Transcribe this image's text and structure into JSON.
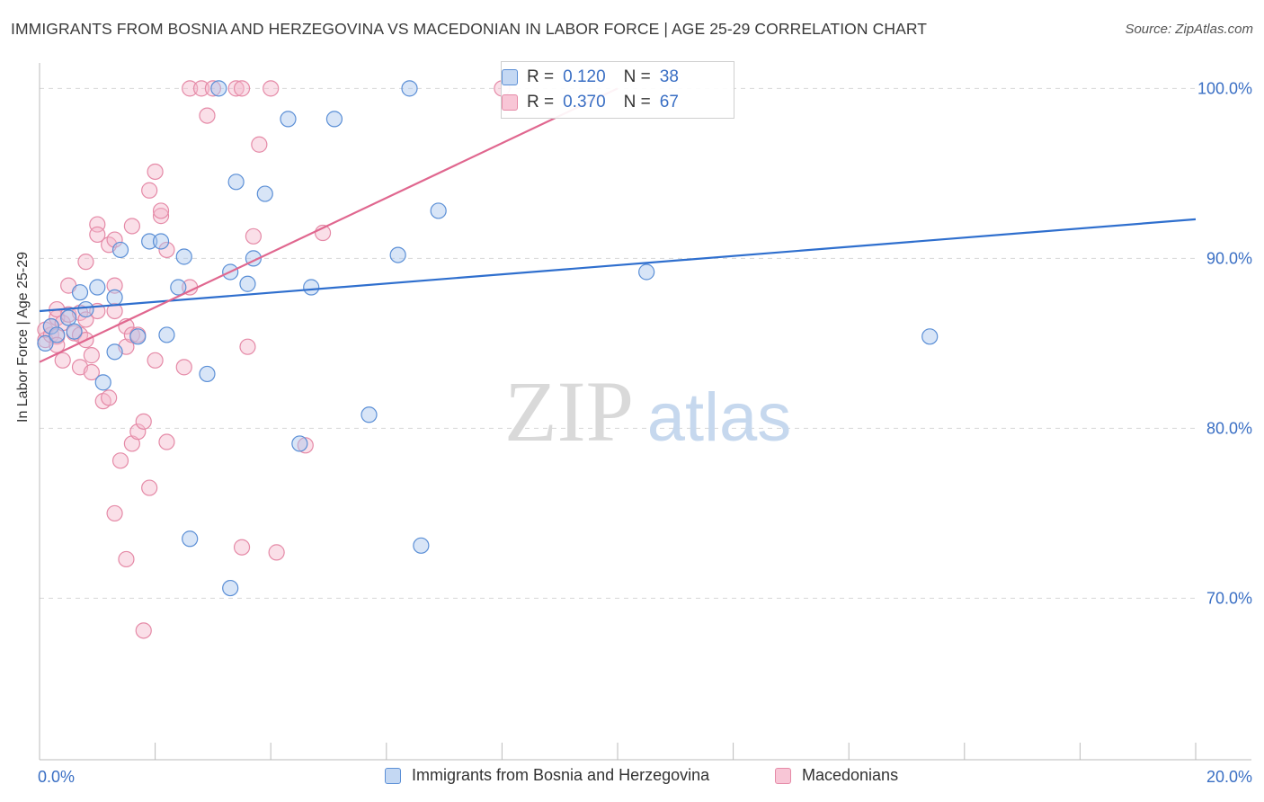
{
  "title": "IMMIGRANTS FROM BOSNIA AND HERZEGOVINA VS MACEDONIAN IN LABOR FORCE | AGE 25-29 CORRELATION CHART",
  "source": "Source: ZipAtlas.com",
  "watermark": {
    "zip": "ZIP",
    "atlas": "atlas"
  },
  "legend": {
    "r_label": "R =",
    "n_label": "N =",
    "rows": [
      {
        "r": "0.120",
        "n": "38"
      },
      {
        "r": "0.370",
        "n": "67"
      }
    ]
  },
  "colors": {
    "blue_fill": "#a9c6ee",
    "blue_stroke": "#5b8fd6",
    "blue_line": "#2f6fce",
    "pink_fill": "#f5b8cb",
    "pink_stroke": "#e58aa7",
    "pink_line": "#e0678f",
    "tick_label": "#3a6fc4",
    "grid": "#d8d8d8"
  },
  "chart_data": {
    "type": "scatter",
    "title": "IMMIGRANTS FROM BOSNIA AND HERZEGOVINA VS MACEDONIAN IN LABOR FORCE | AGE 25-29 CORRELATION CHART",
    "xlabel": "",
    "ylabel": "In Labor Force | Age 25-29",
    "xlim": [
      0,
      20
    ],
    "ylim": [
      60.5,
      101.5
    ],
    "x_tick_labels": [
      "0.0%",
      "20.0%"
    ],
    "y_ticks": [
      70,
      80,
      90,
      100
    ],
    "y_tick_labels": [
      "70.0%",
      "80.0%",
      "90.0%",
      "100.0%"
    ],
    "grid": "horizontal dashed",
    "legend_position": "top-center",
    "series": [
      {
        "name": "Immigrants from Bosnia and Herzegovina",
        "color": "#a9c6ee",
        "trend": {
          "x": [
            0,
            20
          ],
          "y": [
            86.9,
            92.3
          ]
        },
        "points": [
          [
            0.1,
            85.0
          ],
          [
            0.2,
            86.0
          ],
          [
            0.3,
            85.5
          ],
          [
            0.5,
            86.5
          ],
          [
            0.6,
            85.7
          ],
          [
            0.7,
            88.0
          ],
          [
            0.8,
            87.0
          ],
          [
            1.0,
            88.3
          ],
          [
            1.1,
            82.7
          ],
          [
            1.3,
            87.7
          ],
          [
            1.3,
            84.5
          ],
          [
            1.4,
            90.5
          ],
          [
            1.7,
            85.4
          ],
          [
            1.9,
            91.0
          ],
          [
            2.1,
            91.0
          ],
          [
            2.2,
            85.5
          ],
          [
            2.4,
            88.3
          ],
          [
            2.5,
            90.1
          ],
          [
            2.6,
            73.5
          ],
          [
            2.9,
            83.2
          ],
          [
            3.1,
            100.0
          ],
          [
            3.3,
            89.2
          ],
          [
            3.3,
            70.6
          ],
          [
            3.4,
            94.5
          ],
          [
            3.6,
            88.5
          ],
          [
            3.7,
            90.0
          ],
          [
            3.9,
            93.8
          ],
          [
            4.3,
            98.2
          ],
          [
            4.5,
            79.1
          ],
          [
            4.7,
            88.3
          ],
          [
            5.1,
            98.2
          ],
          [
            5.7,
            80.8
          ],
          [
            6.2,
            90.2
          ],
          [
            6.4,
            100.0
          ],
          [
            6.6,
            73.1
          ],
          [
            6.9,
            92.8
          ],
          [
            10.5,
            89.2
          ],
          [
            15.4,
            85.4
          ]
        ]
      },
      {
        "name": "Macedonians",
        "color": "#f5b8cb",
        "trend": {
          "x": [
            0,
            10
          ],
          "y": [
            83.9,
            100.0
          ]
        },
        "points": [
          [
            0.1,
            85.2
          ],
          [
            0.1,
            85.8
          ],
          [
            0.2,
            85.5
          ],
          [
            0.2,
            86.0
          ],
          [
            0.3,
            86.5
          ],
          [
            0.3,
            85.4
          ],
          [
            0.3,
            84.9
          ],
          [
            0.3,
            87.0
          ],
          [
            0.4,
            86.2
          ],
          [
            0.4,
            84.0
          ],
          [
            0.5,
            86.7
          ],
          [
            0.5,
            88.4
          ],
          [
            0.6,
            85.6
          ],
          [
            0.7,
            86.8
          ],
          [
            0.7,
            83.6
          ],
          [
            0.7,
            85.5
          ],
          [
            0.8,
            85.2
          ],
          [
            0.8,
            86.4
          ],
          [
            0.8,
            89.8
          ],
          [
            0.9,
            84.3
          ],
          [
            0.9,
            83.3
          ],
          [
            1.0,
            86.9
          ],
          [
            1.0,
            92.0
          ],
          [
            1.0,
            91.4
          ],
          [
            1.1,
            81.6
          ],
          [
            1.2,
            81.8
          ],
          [
            1.2,
            90.8
          ],
          [
            1.3,
            91.1
          ],
          [
            1.3,
            88.4
          ],
          [
            1.3,
            86.9
          ],
          [
            1.3,
            75.0
          ],
          [
            1.4,
            78.1
          ],
          [
            1.5,
            84.8
          ],
          [
            1.5,
            86.0
          ],
          [
            1.5,
            72.3
          ],
          [
            1.6,
            85.5
          ],
          [
            1.6,
            91.9
          ],
          [
            1.6,
            79.1
          ],
          [
            1.7,
            79.8
          ],
          [
            1.7,
            85.5
          ],
          [
            1.8,
            80.4
          ],
          [
            1.8,
            68.1
          ],
          [
            1.9,
            76.5
          ],
          [
            1.9,
            94.0
          ],
          [
            2.0,
            95.1
          ],
          [
            2.0,
            84.0
          ],
          [
            2.1,
            92.5
          ],
          [
            2.1,
            92.8
          ],
          [
            2.2,
            79.2
          ],
          [
            2.2,
            90.5
          ],
          [
            2.5,
            83.6
          ],
          [
            2.6,
            88.3
          ],
          [
            2.6,
            100.0
          ],
          [
            2.8,
            100.0
          ],
          [
            2.9,
            98.4
          ],
          [
            3.0,
            100.0
          ],
          [
            3.4,
            100.0
          ],
          [
            3.5,
            100.0
          ],
          [
            3.5,
            73.0
          ],
          [
            3.6,
            84.8
          ],
          [
            3.7,
            91.3
          ],
          [
            3.8,
            96.7
          ],
          [
            4.0,
            100.0
          ],
          [
            4.1,
            72.7
          ],
          [
            4.6,
            79.0
          ],
          [
            4.9,
            91.5
          ],
          [
            8.0,
            100.0
          ]
        ]
      }
    ]
  }
}
